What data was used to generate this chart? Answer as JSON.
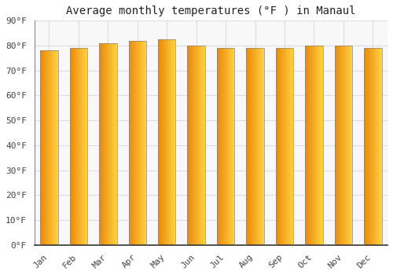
{
  "title": "Average monthly temperatures (°F ) in Manaul",
  "months": [
    "Jan",
    "Feb",
    "Mar",
    "Apr",
    "May",
    "Jun",
    "Jul",
    "Aug",
    "Sep",
    "Oct",
    "Nov",
    "Dec"
  ],
  "values": [
    78,
    79,
    81,
    82,
    82.5,
    80,
    79,
    79,
    79,
    80,
    80,
    79
  ],
  "bar_color_left": "#E8890A",
  "bar_color_right": "#FFD040",
  "bar_edge_color": "#888888",
  "ylim": [
    0,
    90
  ],
  "yticks": [
    0,
    10,
    20,
    30,
    40,
    50,
    60,
    70,
    80,
    90
  ],
  "ytick_labels": [
    "0°F",
    "10°F",
    "20°F",
    "30°F",
    "40°F",
    "50°F",
    "60°F",
    "70°F",
    "80°F",
    "90°F"
  ],
  "background_color": "#FFFFFF",
  "plot_bg_color": "#F8F8F8",
  "grid_color": "#DDDDDD",
  "title_fontsize": 10,
  "tick_fontsize": 8,
  "font_family": "monospace",
  "bar_width": 0.6
}
